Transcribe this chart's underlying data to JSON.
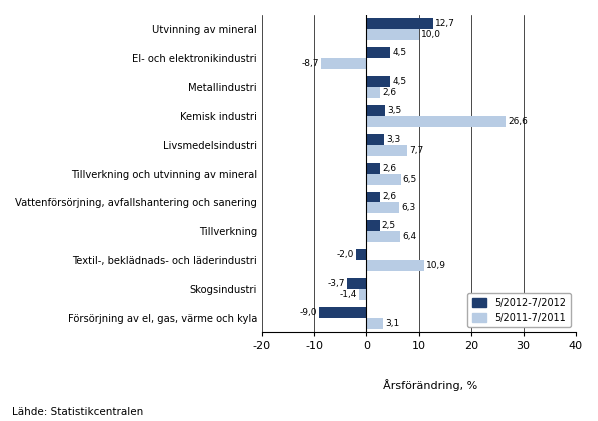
{
  "categories": [
    "Utvinning av mineral",
    "El- och elektronikindustri",
    "Metallindustri",
    "Kemisk industri",
    "Livsmedelsindustri",
    "Tillverkning och utvinning av mineral",
    "Vattenförsörjning, avfallshantering och sanering",
    "Tillverkning",
    "Textil-, beklädnads- och läderindustri",
    "Skogsindustri",
    "Försörjning av el, gas, värme och kyla"
  ],
  "values_2012": [
    12.7,
    4.5,
    4.5,
    3.5,
    3.3,
    2.6,
    2.6,
    2.5,
    -2.0,
    -3.7,
    -9.0
  ],
  "values_2011": [
    10.0,
    -8.7,
    2.6,
    26.6,
    7.7,
    6.5,
    6.3,
    6.4,
    10.9,
    -1.4,
    3.1
  ],
  "color_2012": "#1F3D6E",
  "color_2011": "#B8CCE4",
  "xlabel": "Årsförändring, %",
  "legend_2012": "5/2012-7/2012",
  "legend_2011": "5/2011-7/2011",
  "xlim": [
    -20,
    40
  ],
  "xticks": [
    -20,
    -10,
    0,
    10,
    20,
    30,
    40
  ],
  "source": "Lähde: Statistikcentralen"
}
